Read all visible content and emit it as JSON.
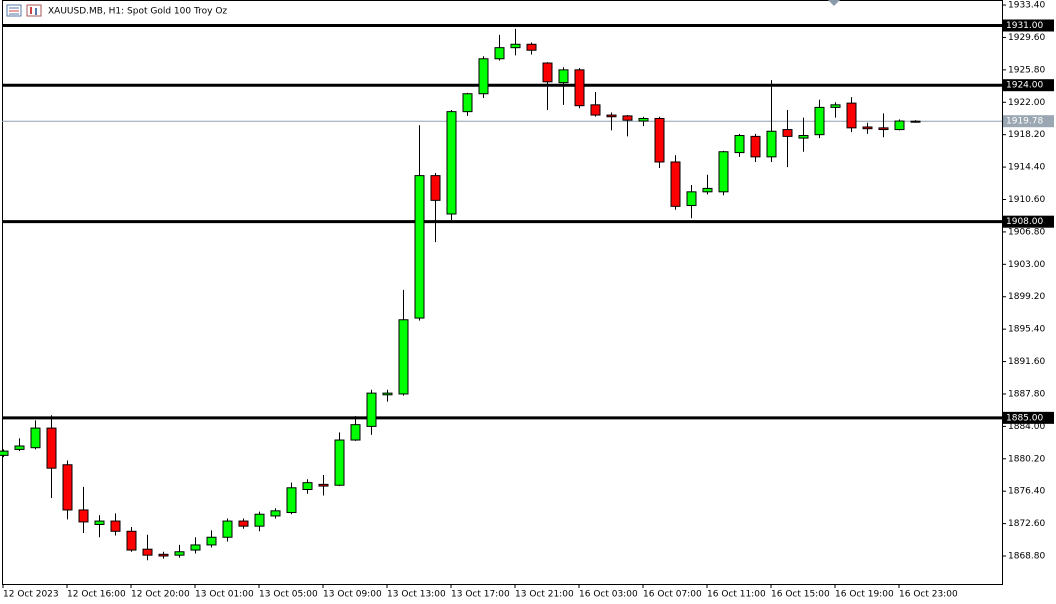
{
  "chart_data": {
    "type": "candlestick",
    "title": "XAUUSD.MB, H1:  Spot Gold 100 Troy Oz",
    "categories": [
      "12 Oct 2023",
      null,
      null,
      null,
      "12 Oct 16:00",
      null,
      null,
      null,
      "12 Oct 20:00",
      null,
      null,
      null,
      "13 Oct 01:00",
      null,
      null,
      null,
      "13 Oct 05:00",
      null,
      null,
      null,
      "13 Oct 09:00",
      null,
      null,
      null,
      "13 Oct 13:00",
      null,
      null,
      null,
      "13 Oct 17:00",
      null,
      null,
      null,
      "13 Oct 21:00",
      null,
      null,
      null,
      "16 Oct 03:00",
      null,
      null,
      null,
      "16 Oct 07:00",
      null,
      null,
      null,
      "16 Oct 11:00",
      null,
      null,
      null,
      "16 Oct 15:00",
      null,
      null,
      null,
      "16 Oct 19:00",
      null,
      null,
      null,
      "16 Oct 23:00",
      null
    ],
    "open": [
      1880.6,
      1881.3,
      1881.5,
      1883.8,
      1879.5,
      1874.2,
      1872.5,
      1872.9,
      1871.7,
      1869.6,
      1869.0,
      1868.9,
      1869.5,
      1870.1,
      1871.0,
      1872.9,
      1872.3,
      1873.5,
      1873.9,
      1876.6,
      1877.2,
      1877.1,
      1882.4,
      1884.0,
      1887.7,
      1887.8,
      1896.7,
      1913.4,
      1908.9,
      1920.9,
      1923.0,
      1927.1,
      1928.4,
      1928.8,
      1926.6,
      1924.3,
      1925.8,
      1921.7,
      1920.5,
      1920.4,
      1919.8,
      1920.1,
      1915.0,
      1909.9,
      1911.5,
      1911.5,
      1916.1,
      1918.0,
      1915.6,
      1918.8,
      1917.8,
      1918.2,
      1921.4,
      1921.9,
      1919.1,
      1919.0,
      1918.8,
      1919.7
    ],
    "high": [
      1881.3,
      1882.6,
      1884.7,
      1885.3,
      1880.0,
      1876.9,
      1873.6,
      1873.8,
      1872.2,
      1871.3,
      1869.3,
      1870.1,
      1871.0,
      1871.8,
      1873.2,
      1873.2,
      1874.0,
      1874.4,
      1877.4,
      1877.8,
      1878.3,
      1883.3,
      1885.2,
      1888.3,
      1888.3,
      1900.0,
      1919.3,
      1913.7,
      1921.1,
      1923.1,
      1927.4,
      1929.9,
      1930.6,
      1929.0,
      1926.7,
      1926.1,
      1926.0,
      1923.2,
      1920.8,
      1920.5,
      1920.3,
      1920.3,
      1915.8,
      1912.3,
      1913.5,
      1916.3,
      1918.3,
      1918.3,
      1924.6,
      1921.1,
      1920.2,
      1922.3,
      1922.0,
      1922.6,
      1919.6,
      1920.7,
      1920.0,
      1919.9
    ],
    "low": [
      1880.4,
      1881.1,
      1881.3,
      1875.6,
      1873.1,
      1871.5,
      1871.0,
      1871.2,
      1869.3,
      1868.3,
      1868.5,
      1868.6,
      1869.1,
      1869.8,
      1870.5,
      1872.0,
      1871.7,
      1873.2,
      1873.7,
      1876.1,
      1875.9,
      1877.0,
      1882.3,
      1883.0,
      1886.9,
      1887.6,
      1896.4,
      1905.6,
      1908.2,
      1920.4,
      1922.5,
      1926.9,
      1927.5,
      1927.6,
      1921.1,
      1921.7,
      1921.3,
      1920.3,
      1918.7,
      1918.0,
      1919.2,
      1914.3,
      1909.4,
      1908.4,
      1911.2,
      1911.1,
      1915.6,
      1915.0,
      1915.0,
      1914.4,
      1916.2,
      1917.8,
      1920.2,
      1918.5,
      1918.3,
      1917.9,
      1918.7,
      1919.6
    ],
    "close": [
      1881.1,
      1881.7,
      1883.8,
      1879.1,
      1874.2,
      1872.8,
      1872.9,
      1871.7,
      1869.5,
      1868.9,
      1868.8,
      1869.3,
      1870.1,
      1871.0,
      1872.9,
      1872.3,
      1873.7,
      1874.1,
      1876.8,
      1877.4,
      1877.0,
      1882.4,
      1884.2,
      1887.9,
      1887.9,
      1896.5,
      1913.4,
      1910.5,
      1920.9,
      1923.0,
      1927.1,
      1928.4,
      1928.8,
      1928.1,
      1924.4,
      1925.8,
      1921.6,
      1920.5,
      1920.3,
      1919.9,
      1920.1,
      1915.0,
      1909.8,
      1911.5,
      1911.9,
      1916.2,
      1918.1,
      1915.6,
      1918.6,
      1918.0,
      1918.1,
      1921.4,
      1921.7,
      1919.0,
      1918.9,
      1918.8,
      1919.8,
      1919.78
    ],
    "up_color": "#00ff00",
    "down_color": "#ff0000",
    "ylim": [
      1865.52,
      1933.99
    ],
    "yticks": [
      {
        "value": 1933.4,
        "label": "1933.40"
      },
      {
        "value": 1929.6,
        "label": "1929.60"
      },
      {
        "value": 1925.8,
        "label": "1925.80"
      },
      {
        "value": 1922.0,
        "label": "1922.00"
      },
      {
        "value": 1918.2,
        "label": "1918.20"
      },
      {
        "value": 1914.4,
        "label": "1914.40"
      },
      {
        "value": 1910.6,
        "label": "1910.60"
      },
      {
        "value": 1906.8,
        "label": "1906.80"
      },
      {
        "value": 1903.0,
        "label": "1903.00"
      },
      {
        "value": 1899.2,
        "label": "1899.20"
      },
      {
        "value": 1895.4,
        "label": "1895.40"
      },
      {
        "value": 1891.6,
        "label": "1891.60"
      },
      {
        "value": 1887.8,
        "label": "1887.80"
      },
      {
        "value": 1884.0,
        "label": "1884.00"
      },
      {
        "value": 1880.2,
        "label": "1880.20"
      },
      {
        "value": 1876.4,
        "label": "1876.40"
      },
      {
        "value": 1872.6,
        "label": "1872.60"
      },
      {
        "value": 1868.8,
        "label": "1868.80"
      }
    ],
    "levels": [
      {
        "value": 1931.0,
        "label": "1931.00"
      },
      {
        "value": 1924.0,
        "label": "1924.00"
      },
      {
        "value": 1908.0,
        "label": "1908.00"
      },
      {
        "value": 1885.0,
        "label": "1885.00"
      }
    ],
    "last_price": {
      "value": 1919.78,
      "label": "1919.78"
    }
  }
}
